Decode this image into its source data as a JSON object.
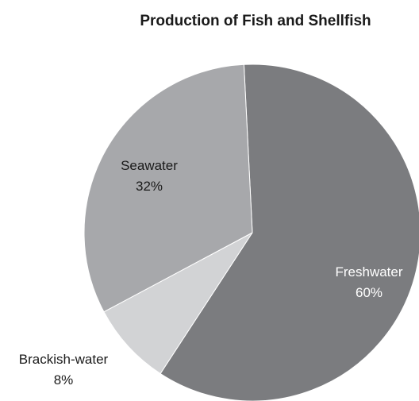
{
  "chart_data": {
    "type": "pie",
    "title": "Production of Fish and Shellfish",
    "slices": [
      {
        "label": "Freshwater",
        "value": 60,
        "value_label": "60%",
        "color": "#7b7c7f",
        "label_color": "#ffffff"
      },
      {
        "label": "Brackish-water",
        "value": 8,
        "value_label": "8%",
        "color": "#d2d3d5",
        "label_color": "#1a1a1a"
      },
      {
        "label": "Seawater",
        "value": 32,
        "value_label": "32%",
        "color": "#a7a8ab",
        "label_color": "#1a1a1a"
      }
    ],
    "start": "top, clockwise",
    "legend": "none"
  }
}
